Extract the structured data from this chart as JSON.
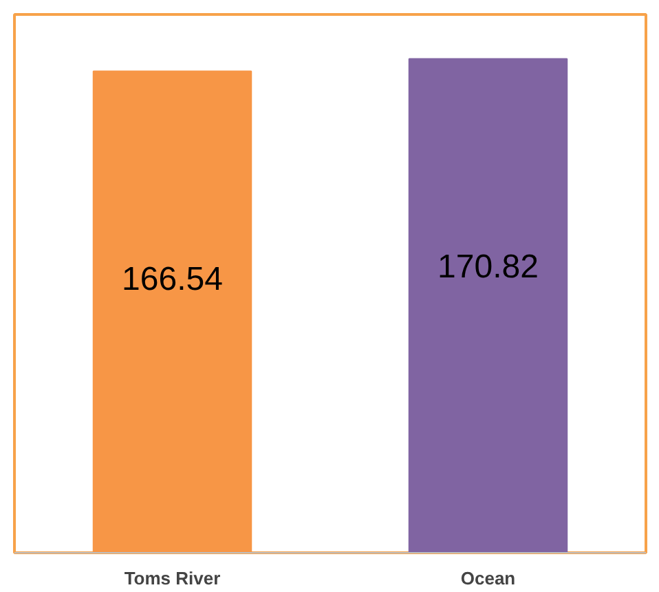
{
  "chart_data": {
    "type": "bar",
    "categories": [
      "Toms River",
      "Ocean"
    ],
    "values": [
      166.54,
      170.82
    ],
    "colors": [
      "#f79646",
      "#8064a2"
    ],
    "data_labels": true,
    "grid": false
  }
}
